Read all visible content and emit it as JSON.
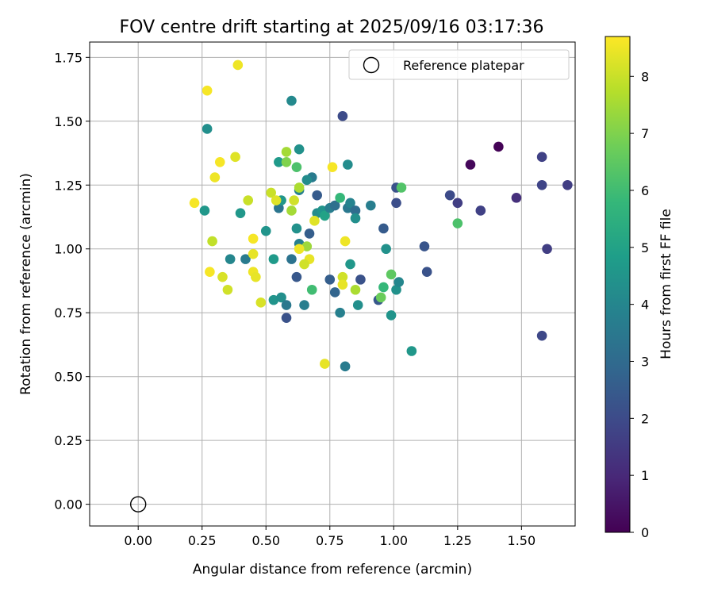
{
  "chart_data": {
    "type": "scatter",
    "title": "FOV centre drift starting at 2025/09/16 03:17:36",
    "xlabel": "Angular distance from reference (arcmin)",
    "ylabel": "Rotation from reference (arcmin)",
    "xlim": [
      -0.19,
      1.71
    ],
    "ylim": [
      -0.085,
      1.81
    ],
    "xticks": [
      0.0,
      0.25,
      0.5,
      0.75,
      1.0,
      1.25,
      1.5
    ],
    "xtick_labels": [
      "0.00",
      "0.25",
      "0.50",
      "0.75",
      "1.00",
      "1.25",
      "1.50"
    ],
    "yticks": [
      0.0,
      0.25,
      0.5,
      0.75,
      1.0,
      1.25,
      1.5,
      1.75
    ],
    "ytick_labels": [
      "0.00",
      "0.25",
      "0.50",
      "0.75",
      "1.00",
      "1.25",
      "1.50",
      "1.75"
    ],
    "grid": true,
    "legend": {
      "position": "top-right",
      "label": "Reference platepar"
    },
    "reference_point": [
      0.0,
      0.0
    ],
    "colorbar": {
      "label": "Hours from first FF file",
      "range": [
        0,
        8.7
      ],
      "ticks": [
        0,
        1,
        2,
        3,
        4,
        5,
        6,
        7,
        8
      ],
      "tick_labels": [
        "0",
        "1",
        "2",
        "3",
        "4",
        "5",
        "6",
        "7",
        "8"
      ],
      "colormap": "viridis",
      "stops": [
        "#440154",
        "#482878",
        "#3e4989",
        "#31688e",
        "#26828e",
        "#1f9e89",
        "#35b779",
        "#6ece58",
        "#b5de2b",
        "#fde725"
      ]
    },
    "points": [
      [
        1.41,
        1.4,
        0.05
      ],
      [
        1.3,
        1.33,
        0.15
      ],
      [
        1.58,
        1.36,
        1.7
      ],
      [
        1.68,
        1.25,
        1.6
      ],
      [
        1.58,
        1.25,
        1.8
      ],
      [
        1.48,
        1.2,
        1.2
      ],
      [
        1.34,
        1.15,
        1.7
      ],
      [
        1.25,
        1.18,
        1.6
      ],
      [
        1.22,
        1.21,
        2.0
      ],
      [
        1.6,
        1.0,
        1.6
      ],
      [
        1.58,
        0.66,
        1.9
      ],
      [
        1.12,
        1.01,
        2.3
      ],
      [
        1.13,
        0.91,
        2.2
      ],
      [
        0.8,
        1.52,
        2.0
      ],
      [
        1.01,
        1.24,
        2.2
      ],
      [
        1.01,
        1.18,
        2.1
      ],
      [
        0.96,
        1.08,
        2.5
      ],
      [
        0.94,
        0.8,
        2.4
      ],
      [
        0.87,
        0.88,
        2.2
      ],
      [
        0.75,
        0.88,
        2.6
      ],
      [
        0.77,
        0.83,
        2.8
      ],
      [
        0.7,
        1.21,
        2.5
      ],
      [
        0.67,
        1.06,
        2.6
      ],
      [
        0.62,
        0.89,
        2.4
      ],
      [
        0.58,
        0.73,
        2.2
      ],
      [
        0.6,
        1.58,
        4.1
      ],
      [
        0.82,
        1.33,
        4.2
      ],
      [
        0.63,
        1.39,
        4.4
      ],
      [
        0.27,
        1.47,
        4.3
      ],
      [
        0.26,
        1.15,
        4.6
      ],
      [
        0.36,
        0.96,
        4.0
      ],
      [
        0.42,
        0.96,
        3.6
      ],
      [
        0.5,
        1.07,
        4.5
      ],
      [
        0.53,
        0.96,
        4.7
      ],
      [
        0.53,
        0.8,
        4.5
      ],
      [
        0.56,
        0.81,
        4.3
      ],
      [
        0.58,
        0.78,
        3.5
      ],
      [
        0.6,
        0.96,
        3.3
      ],
      [
        0.63,
        1.02,
        3.8
      ],
      [
        0.65,
        0.78,
        3.7
      ],
      [
        0.68,
        1.28,
        3.6
      ],
      [
        0.66,
        1.27,
        4.2
      ],
      [
        0.63,
        1.23,
        3.8
      ],
      [
        0.62,
        1.08,
        4.4
      ],
      [
        0.55,
        1.16,
        3.4
      ],
      [
        0.56,
        1.19,
        4.6
      ],
      [
        0.55,
        1.34,
        4.7
      ],
      [
        0.4,
        1.14,
        4.6
      ],
      [
        0.7,
        1.14,
        4.2
      ],
      [
        0.72,
        1.15,
        4.5
      ],
      [
        0.73,
        1.13,
        5.0
      ],
      [
        0.75,
        1.16,
        3.7
      ],
      [
        0.77,
        1.17,
        3.2
      ],
      [
        0.79,
        0.75,
        3.8
      ],
      [
        0.81,
        0.54,
        3.6
      ],
      [
        0.83,
        0.94,
        4.6
      ],
      [
        0.82,
        1.16,
        3.5
      ],
      [
        0.83,
        1.18,
        3.9
      ],
      [
        0.85,
        1.15,
        3.1
      ],
      [
        0.85,
        1.12,
        4.3
      ],
      [
        0.86,
        0.78,
        4.3
      ],
      [
        0.91,
        1.17,
        3.7
      ],
      [
        0.97,
        1.0,
        4.4
      ],
      [
        0.99,
        0.74,
        4.5
      ],
      [
        1.01,
        0.84,
        4.4
      ],
      [
        1.02,
        0.87,
        4.0
      ],
      [
        1.07,
        0.6,
        4.6
      ],
      [
        0.79,
        1.2,
        5.8
      ],
      [
        1.03,
        1.24,
        6.3
      ],
      [
        1.25,
        1.1,
        6.2
      ],
      [
        0.99,
        0.9,
        6.5
      ],
      [
        0.96,
        0.85,
        5.8
      ],
      [
        0.95,
        0.81,
        6.7
      ],
      [
        0.85,
        0.84,
        7.6
      ],
      [
        0.68,
        0.84,
        6.0
      ],
      [
        0.66,
        1.01,
        7.4
      ],
      [
        0.58,
        1.38,
        7.5
      ],
      [
        0.58,
        1.34,
        7.0
      ],
      [
        0.62,
        1.32,
        6.2
      ],
      [
        0.6,
        1.15,
        7.5
      ],
      [
        0.61,
        1.19,
        8.1
      ],
      [
        0.52,
        1.22,
        8.0
      ],
      [
        0.54,
        1.19,
        8.3
      ],
      [
        0.63,
        1.24,
        7.6
      ],
      [
        0.69,
        1.11,
        8.3
      ],
      [
        0.67,
        0.96,
        8.4
      ],
      [
        0.65,
        0.94,
        8.1
      ],
      [
        0.63,
        1.0,
        8.5
      ],
      [
        0.76,
        1.32,
        8.6
      ],
      [
        0.39,
        1.72,
        8.5
      ],
      [
        0.27,
        1.62,
        8.6
      ],
      [
        0.38,
        1.36,
        8.3
      ],
      [
        0.32,
        1.34,
        8.6
      ],
      [
        0.3,
        1.28,
        8.5
      ],
      [
        0.43,
        1.19,
        8.0
      ],
      [
        0.22,
        1.18,
        8.6
      ],
      [
        0.29,
        1.03,
        7.9
      ],
      [
        0.45,
        1.04,
        8.6
      ],
      [
        0.45,
        0.98,
        8.4
      ],
      [
        0.28,
        0.91,
        8.6
      ],
      [
        0.33,
        0.89,
        8.2
      ],
      [
        0.35,
        0.84,
        8.1
      ],
      [
        0.45,
        0.91,
        8.5
      ],
      [
        0.46,
        0.89,
        8.4
      ],
      [
        0.48,
        0.79,
        8.2
      ],
      [
        0.8,
        0.89,
        8.1
      ],
      [
        0.8,
        0.86,
        8.4
      ],
      [
        0.81,
        1.03,
        8.5
      ],
      [
        0.73,
        0.55,
        8.4
      ]
    ]
  }
}
